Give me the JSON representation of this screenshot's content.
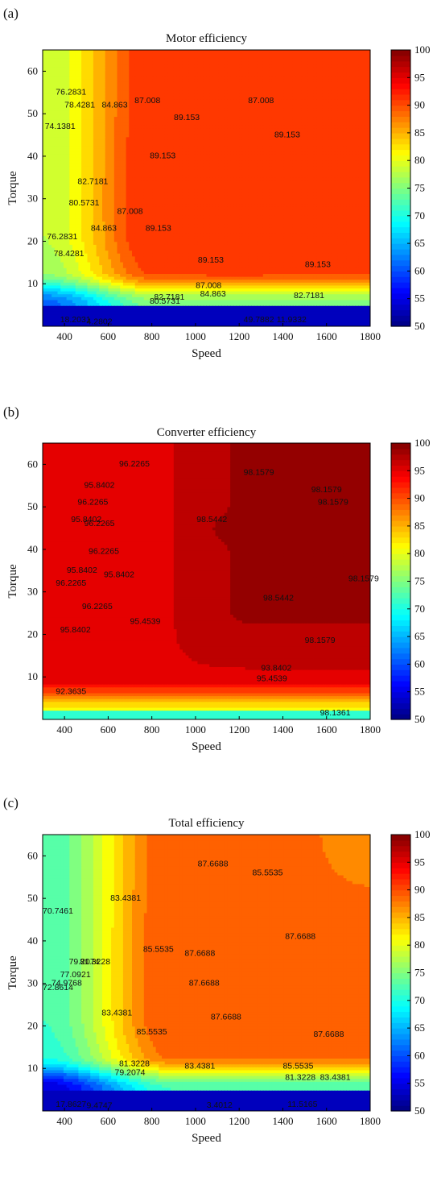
{
  "chart_data": [
    {
      "type": "contour",
      "panel_tag": "(a)",
      "title": "Motor efficiency",
      "xlabel": "Speed",
      "ylabel": "Torque",
      "xlim": [
        300,
        1800
      ],
      "ylim": [
        0,
        65
      ],
      "xticks": [
        400,
        600,
        800,
        1000,
        1200,
        1400,
        1600,
        1800
      ],
      "yticks": [
        10,
        20,
        30,
        40,
        50,
        60
      ],
      "colorbar": {
        "min": 50,
        "max": 100,
        "ticks": [
          50,
          55,
          60,
          65,
          70,
          75,
          80,
          85,
          90,
          95,
          100
        ],
        "colormap": "jet"
      },
      "levels": [
        74.1381,
        76.2831,
        78.4281,
        80.5731,
        82.7181,
        84.863,
        87.008,
        89.153
      ],
      "contour_labels": [
        {
          "text": "74.1381",
          "x": 380,
          "y": 47
        },
        {
          "text": "76.2831",
          "x": 430,
          "y": 55
        },
        {
          "text": "78.4281",
          "x": 470,
          "y": 52
        },
        {
          "text": "80.5731",
          "x": 490,
          "y": 29
        },
        {
          "text": "82.7181",
          "x": 530,
          "y": 34
        },
        {
          "text": "84.863",
          "x": 630,
          "y": 52
        },
        {
          "text": "87.008",
          "x": 780,
          "y": 53
        },
        {
          "text": "89.153",
          "x": 960,
          "y": 49
        },
        {
          "text": "87.008",
          "x": 1300,
          "y": 53
        },
        {
          "text": "89.153",
          "x": 1420,
          "y": 45
        },
        {
          "text": "89.153",
          "x": 850,
          "y": 40
        },
        {
          "text": "87.008",
          "x": 700,
          "y": 27
        },
        {
          "text": "84.863",
          "x": 580,
          "y": 23
        },
        {
          "text": "89.153",
          "x": 830,
          "y": 23
        },
        {
          "text": "76.2831",
          "x": 390,
          "y": 21
        },
        {
          "text": "78.4281",
          "x": 420,
          "y": 17
        },
        {
          "text": "89.153",
          "x": 1070,
          "y": 15.5
        },
        {
          "text": "89.153",
          "x": 1560,
          "y": 14.5
        },
        {
          "text": "87.008",
          "x": 1060,
          "y": 9.5
        },
        {
          "text": "84.863",
          "x": 1080,
          "y": 7.5
        },
        {
          "text": "82.7181",
          "x": 880,
          "y": 6.8
        },
        {
          "text": "80.5731",
          "x": 860,
          "y": 5.8
        },
        {
          "text": "82.7181",
          "x": 1520,
          "y": 7.2
        },
        {
          "text": "18.2031",
          "x": 450,
          "y": 1.5
        },
        {
          "text": "4.2802",
          "x": 560,
          "y": 1.0
        },
        {
          "text": "49.7882",
          "x": 1290,
          "y": 1.5
        },
        {
          "text": "11.9332",
          "x": 1440,
          "y": 1.5
        }
      ]
    },
    {
      "type": "contour",
      "panel_tag": "(b)",
      "title": "Converter efficiency",
      "xlabel": "Speed",
      "ylabel": "Torque",
      "xlim": [
        300,
        1800
      ],
      "ylim": [
        0,
        65
      ],
      "xticks": [
        400,
        600,
        800,
        1000,
        1200,
        1400,
        1600,
        1800
      ],
      "yticks": [
        10,
        20,
        30,
        40,
        50,
        60
      ],
      "colorbar": {
        "min": 50,
        "max": 100,
        "ticks": [
          50,
          55,
          60,
          65,
          70,
          75,
          80,
          85,
          90,
          95,
          100
        ],
        "colormap": "jet"
      },
      "levels": [
        92.3635,
        95.4539,
        95.8402,
        96.2265,
        97.3,
        97.77,
        98.1579,
        98.5442
      ],
      "contour_labels": [
        {
          "text": "96.2265",
          "x": 720,
          "y": 60
        },
        {
          "text": "95.8402",
          "x": 560,
          "y": 55
        },
        {
          "text": "96.2265",
          "x": 530,
          "y": 51
        },
        {
          "text": "95.8402",
          "x": 500,
          "y": 47
        },
        {
          "text": "96.2265",
          "x": 560,
          "y": 46
        },
        {
          "text": "96.2265",
          "x": 580,
          "y": 39.5
        },
        {
          "text": "95.8402",
          "x": 480,
          "y": 35
        },
        {
          "text": "96.2265",
          "x": 430,
          "y": 32
        },
        {
          "text": "95.8402",
          "x": 650,
          "y": 34
        },
        {
          "text": "96.2265",
          "x": 550,
          "y": 26.5
        },
        {
          "text": "95.8402",
          "x": 450,
          "y": 21
        },
        {
          "text": "95.4539",
          "x": 770,
          "y": 23
        },
        {
          "text": "98.1579",
          "x": 1290,
          "y": 58
        },
        {
          "text": "98.1579",
          "x": 1600,
          "y": 54
        },
        {
          "text": "98.1579",
          "x": 1630,
          "y": 51
        },
        {
          "text": "98.5442",
          "x": 1075,
          "y": 47
        },
        {
          "text": "98.5442",
          "x": 1380,
          "y": 28.5
        },
        {
          "text": "98.1579",
          "x": 1570,
          "y": 18.5
        },
        {
          "text": "98.1579",
          "x": 1770,
          "y": 33
        },
        {
          "text": "95.4539",
          "x": 1350,
          "y": 9.5
        },
        {
          "text": "93.8402",
          "x": 1370,
          "y": 12
        },
        {
          "text": "92.3635",
          "x": 430,
          "y": 6.5
        },
        {
          "text": "98.1361",
          "x": 1640,
          "y": 1.5
        }
      ]
    },
    {
      "type": "contour",
      "panel_tag": "(c)",
      "title": "Total efficiency",
      "xlabel": "Speed",
      "ylabel": "Torque",
      "xlim": [
        300,
        1800
      ],
      "ylim": [
        0,
        65
      ],
      "xticks": [
        400,
        600,
        800,
        1000,
        1200,
        1400,
        1600,
        1800
      ],
      "yticks": [
        10,
        20,
        30,
        40,
        50,
        60
      ],
      "colorbar": {
        "min": 50,
        "max": 100,
        "ticks": [
          50,
          55,
          60,
          65,
          70,
          75,
          80,
          85,
          90,
          95,
          100
        ],
        "colormap": "jet"
      },
      "levels": [
        70.7461,
        72.8614,
        74.9768,
        77.0921,
        79.2074,
        81.3228,
        83.4381,
        85.5535,
        87.6688
      ],
      "contour_labels": [
        {
          "text": "70.7461",
          "x": 370,
          "y": 47
        },
        {
          "text": "72.8614",
          "x": 370,
          "y": 29
        },
        {
          "text": "74.9768",
          "x": 410,
          "y": 30
        },
        {
          "text": "77.0921",
          "x": 450,
          "y": 32
        },
        {
          "text": "79.2074",
          "x": 490,
          "y": 35
        },
        {
          "text": "81.3228",
          "x": 540,
          "y": 35
        },
        {
          "text": "83.4381",
          "x": 680,
          "y": 50
        },
        {
          "text": "87.6688",
          "x": 1080,
          "y": 58
        },
        {
          "text": "85.5535",
          "x": 1330,
          "y": 56
        },
        {
          "text": "87.6688",
          "x": 1480,
          "y": 41
        },
        {
          "text": "85.5535",
          "x": 830,
          "y": 38
        },
        {
          "text": "87.6688",
          "x": 1020,
          "y": 37
        },
        {
          "text": "87.6688",
          "x": 1040,
          "y": 30
        },
        {
          "text": "83.4381",
          "x": 640,
          "y": 23
        },
        {
          "text": "85.5535",
          "x": 800,
          "y": 18.5
        },
        {
          "text": "87.6688",
          "x": 1140,
          "y": 22
        },
        {
          "text": "87.6688",
          "x": 1610,
          "y": 18
        },
        {
          "text": "81.3228",
          "x": 720,
          "y": 11
        },
        {
          "text": "79.2074",
          "x": 700,
          "y": 9
        },
        {
          "text": "83.4381",
          "x": 1020,
          "y": 10.5
        },
        {
          "text": "85.5535",
          "x": 1470,
          "y": 10.5
        },
        {
          "text": "83.4381",
          "x": 1640,
          "y": 7.8
        },
        {
          "text": "81.3228",
          "x": 1480,
          "y": 7.8
        },
        {
          "text": "17.8627",
          "x": 430,
          "y": 1.5
        },
        {
          "text": "9.4747",
          "x": 560,
          "y": 1.2
        },
        {
          "text": "3.4012",
          "x": 1110,
          "y": 1.3
        },
        {
          "text": "11.5165",
          "x": 1490,
          "y": 1.5
        }
      ]
    }
  ]
}
